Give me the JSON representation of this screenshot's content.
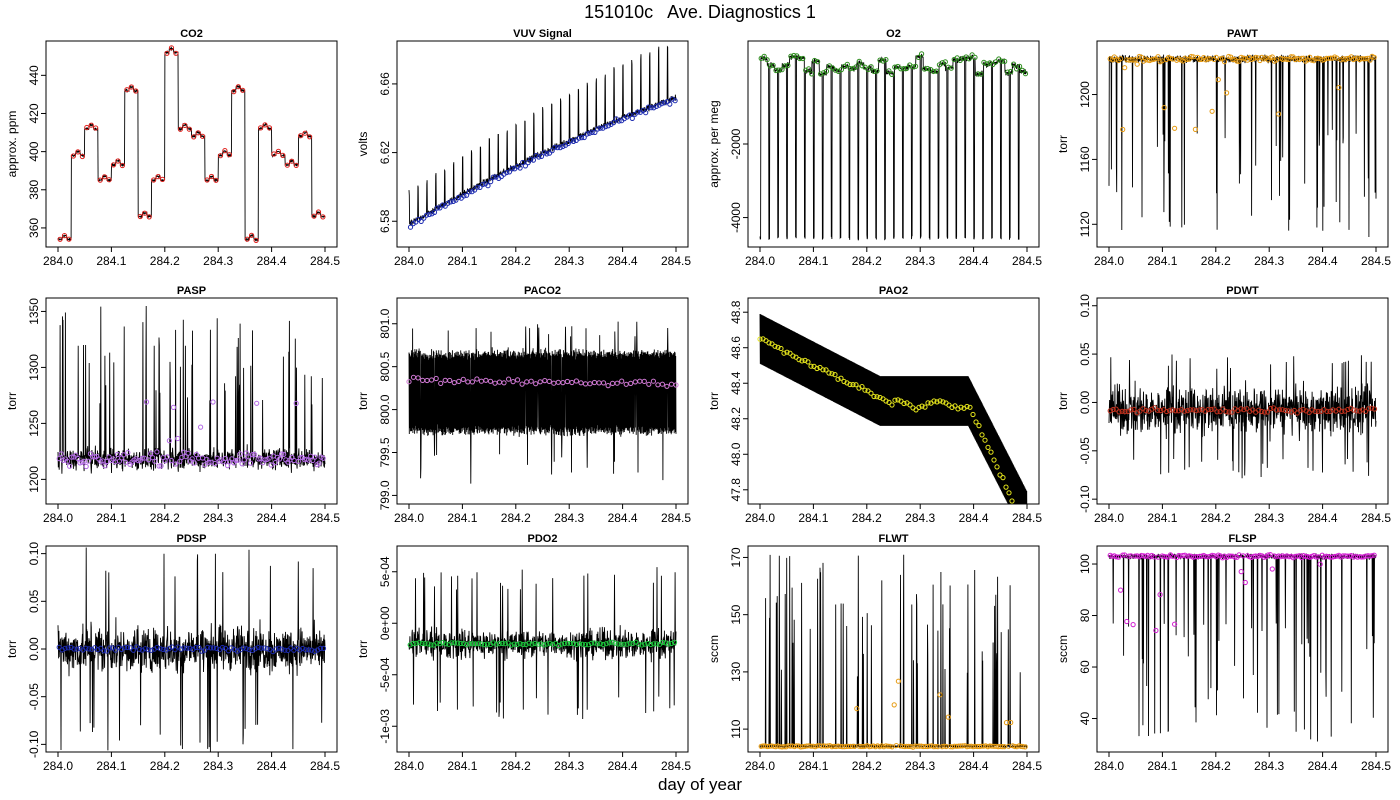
{
  "figure": {
    "title": "151010c   Ave. Diagnostics 1",
    "xlabel": "day of year"
  },
  "chart_data": [
    {
      "type": "line",
      "title": "CO2",
      "ylabel": "approx. ppm",
      "xlim": [
        284.0,
        284.5
      ],
      "ylim": [
        350,
        458
      ],
      "xticks": [
        284.0,
        284.1,
        284.2,
        284.3,
        284.4,
        284.5
      ],
      "xtick_labels": [
        "284.0",
        "284.1",
        "284.2",
        "284.3",
        "284.4",
        "284.5"
      ],
      "yticks": [
        360,
        380,
        400,
        420,
        440
      ],
      "ytick_labels": [
        "360",
        "380",
        "400",
        "420",
        "440"
      ],
      "style": "cycle",
      "points_color": "#e0201c",
      "levels": [
        354,
        398,
        412,
        385,
        393,
        432,
        366,
        385,
        452,
        412,
        408,
        385,
        398,
        432,
        354,
        412,
        398,
        393,
        408,
        366
      ],
      "series": [
        {
          "name": "raw",
          "color": "#000000"
        },
        {
          "name": "average",
          "color": "#e0201c"
        }
      ]
    },
    {
      "type": "line",
      "title": "VUV Signal",
      "ylabel": "volts",
      "xlim": [
        284.0,
        284.5
      ],
      "ylim": [
        6.565,
        6.685
      ],
      "xticks": [
        284.0,
        284.1,
        284.2,
        284.3,
        284.4,
        284.5
      ],
      "xtick_labels": [
        "284.0",
        "284.1",
        "284.2",
        "284.3",
        "284.4",
        "284.5"
      ],
      "yticks": [
        6.58,
        6.62,
        6.66
      ],
      "ytick_labels": [
        "6.58",
        "6.62",
        "6.66"
      ],
      "style": "ramp",
      "start": 6.578,
      "end": 6.652,
      "spike_height": 0.03,
      "points_color": "#1c2ab0",
      "series": [
        {
          "name": "raw",
          "color": "#000000"
        },
        {
          "name": "average",
          "color": "#1c2ab0"
        }
      ]
    },
    {
      "type": "line",
      "title": "O2",
      "ylabel": "approx. per meg",
      "xlim": [
        284.0,
        284.5
      ],
      "ylim": [
        -4800,
        800
      ],
      "xticks": [
        284.0,
        284.1,
        284.2,
        284.3,
        284.4,
        284.5
      ],
      "xtick_labels": [
        "284.0",
        "284.1",
        "284.2",
        "284.3",
        "284.4",
        "284.5"
      ],
      "yticks": [
        -4000,
        -2000
      ],
      "ytick_labels": [
        "-4000",
        "-2000"
      ],
      "style": "o2",
      "points_color": "#2c8c1c",
      "high": [
        -100,
        400
      ],
      "low": -4550,
      "series": [
        {
          "name": "raw",
          "color": "#000000"
        },
        {
          "name": "average",
          "color": "#2c8c1c"
        }
      ]
    },
    {
      "type": "line",
      "title": "PAWT",
      "ylabel": "torr",
      "xlim": [
        284.0,
        284.5
      ],
      "ylim": [
        1106,
        1233
      ],
      "xticks": [
        284.0,
        284.1,
        284.2,
        284.3,
        284.4,
        284.5
      ],
      "xtick_labels": [
        "284.0",
        "284.1",
        "284.2",
        "284.3",
        "284.4",
        "284.5"
      ],
      "yticks": [
        1120,
        1160,
        1200
      ],
      "ytick_labels": [
        "1120",
        "1160",
        "1200"
      ],
      "style": "dips",
      "base": 1222,
      "noise": 2,
      "dip_min": 1112,
      "points_color": "#e69a10",
      "series": [
        {
          "name": "raw",
          "color": "#000000"
        },
        {
          "name": "average",
          "color": "#e69a10"
        }
      ]
    },
    {
      "type": "line",
      "title": "PASP",
      "ylabel": "torr",
      "xlim": [
        284.0,
        284.5
      ],
      "ylim": [
        1178,
        1362
      ],
      "xticks": [
        284.0,
        284.1,
        284.2,
        284.3,
        284.4,
        284.5
      ],
      "xtick_labels": [
        "284.0",
        "284.1",
        "284.2",
        "284.3",
        "284.4",
        "284.5"
      ],
      "yticks": [
        1200,
        1250,
        1300,
        1350
      ],
      "ytick_labels": [
        "1200",
        "1250",
        "1300",
        "1350"
      ],
      "style": "spiky_up",
      "base": 1218,
      "noise": 8,
      "spike_max": 1355,
      "points_color": "#b46ae6",
      "series": [
        {
          "name": "raw",
          "color": "#000000"
        },
        {
          "name": "average",
          "color": "#b46ae6"
        }
      ]
    },
    {
      "type": "line",
      "title": "PACO2",
      "ylabel": "torr",
      "xlim": [
        284.0,
        284.5
      ],
      "ylim": [
        798.9,
        801.3
      ],
      "xticks": [
        284.0,
        284.1,
        284.2,
        284.3,
        284.4,
        284.5
      ],
      "xtick_labels": [
        "284.0",
        "284.1",
        "284.2",
        "284.3",
        "284.4",
        "284.5"
      ],
      "yticks": [
        799.0,
        799.5,
        800.0,
        800.5,
        801.0
      ],
      "ytick_labels": [
        "799.0",
        "799.5",
        "800.0",
        "800.5",
        "801.0"
      ],
      "style": "band",
      "center": 800.25,
      "band_low": 799.75,
      "band_high": 800.65,
      "tail_low": 799.1,
      "tail_high": 801.05,
      "points_color": "#d27ad6",
      "avg_start": 800.35,
      "avg_end": 800.3,
      "series": [
        {
          "name": "raw",
          "color": "#000000"
        },
        {
          "name": "average",
          "color": "#d27ad6"
        }
      ]
    },
    {
      "type": "line",
      "title": "PAO2",
      "ylabel": "torr",
      "xlim": [
        284.0,
        284.5
      ],
      "ylim": [
        47.72,
        48.88
      ],
      "xticks": [
        284.0,
        284.1,
        284.2,
        284.3,
        284.4,
        284.5
      ],
      "xtick_labels": [
        "284.0",
        "284.1",
        "284.2",
        "284.3",
        "284.4",
        "284.5"
      ],
      "yticks": [
        47.8,
        48.0,
        48.2,
        48.4,
        48.6,
        48.8
      ],
      "ytick_labels": [
        "47.8",
        "48.0",
        "48.2",
        "48.4",
        "48.6",
        "48.8"
      ],
      "style": "pao2",
      "points_color": "#e6e61c",
      "series": [
        {
          "name": "raw",
          "color": "#000000"
        },
        {
          "name": "average",
          "color": "#e6e61c"
        }
      ]
    },
    {
      "type": "line",
      "title": "PDWT",
      "ylabel": "torr",
      "xlim": [
        284.0,
        284.5
      ],
      "ylim": [
        -0.105,
        0.108
      ],
      "xticks": [
        284.0,
        284.1,
        284.2,
        284.3,
        284.4,
        284.5
      ],
      "xtick_labels": [
        "284.0",
        "284.1",
        "284.2",
        "284.3",
        "284.4",
        "284.5"
      ],
      "yticks": [
        -0.1,
        -0.05,
        0.0,
        0.05,
        0.1
      ],
      "ytick_labels": [
        "-0.10",
        "-0.05",
        "0.00",
        "0.05",
        "0.10"
      ],
      "style": "noise_band",
      "center": -0.008,
      "noise": 0.02,
      "spike_low": -0.08,
      "spike_high": 0.05,
      "points_color": "#c0301c",
      "series": [
        {
          "name": "raw",
          "color": "#000000"
        },
        {
          "name": "average",
          "color": "#c0301c"
        }
      ]
    },
    {
      "type": "line",
      "title": "PDSP",
      "ylabel": "torr",
      "xlim": [
        284.0,
        284.5
      ],
      "ylim": [
        -0.108,
        0.108
      ],
      "xticks": [
        284.0,
        284.1,
        284.2,
        284.3,
        284.4,
        284.5
      ],
      "xtick_labels": [
        "284.0",
        "284.1",
        "284.2",
        "284.3",
        "284.4",
        "284.5"
      ],
      "yticks": [
        -0.1,
        -0.05,
        0.0,
        0.05,
        0.1
      ],
      "ytick_labels": [
        "-0.10",
        "-0.05",
        "0.00",
        "0.05",
        "0.10"
      ],
      "style": "noise_band",
      "center": 0.0,
      "noise": 0.02,
      "spike_low": -0.108,
      "spike_high": 0.108,
      "points_color": "#1c2ab0",
      "series": [
        {
          "name": "raw",
          "color": "#000000"
        },
        {
          "name": "average",
          "color": "#1c2ab0"
        }
      ]
    },
    {
      "type": "line",
      "title": "PDO2",
      "ylabel": "torr",
      "xlim": [
        284.0,
        284.5
      ],
      "ylim": [
        -0.00125,
        0.00075
      ],
      "xticks": [
        284.0,
        284.1,
        284.2,
        284.3,
        284.4,
        284.5
      ],
      "xtick_labels": [
        "284.0",
        "284.1",
        "284.2",
        "284.3",
        "284.4",
        "284.5"
      ],
      "yticks": [
        -0.001,
        -0.0005,
        0.0,
        0.0005
      ],
      "ytick_labels": [
        "-1e-03",
        "-5e-04",
        "0e+00",
        "5e-04"
      ],
      "style": "noise_band",
      "center": -0.0002,
      "noise": 0.00012,
      "spike_low": -0.00093,
      "spike_high": 0.00055,
      "points_color": "#1cc83c",
      "series": [
        {
          "name": "raw",
          "color": "#000000"
        },
        {
          "name": "average",
          "color": "#1cc83c"
        }
      ]
    },
    {
      "type": "line",
      "title": "FLWT",
      "ylabel": "sccm",
      "xlim": [
        284.0,
        284.5
      ],
      "ylim": [
        102,
        174
      ],
      "xticks": [
        284.0,
        284.1,
        284.2,
        284.3,
        284.4,
        284.5
      ],
      "xtick_labels": [
        "284.0",
        "284.1",
        "284.2",
        "284.3",
        "284.4",
        "284.5"
      ],
      "yticks": [
        110,
        130,
        150,
        170
      ],
      "ytick_labels": [
        "110",
        "130",
        "150",
        "170"
      ],
      "style": "spiky_up",
      "base": 104,
      "noise": 0.3,
      "spike_max": 171,
      "points_color": "#e69a10",
      "series": [
        {
          "name": "raw",
          "color": "#000000"
        },
        {
          "name": "average",
          "color": "#e69a10"
        }
      ]
    },
    {
      "type": "line",
      "title": "FLSP",
      "ylabel": "sccm",
      "xlim": [
        284.0,
        284.5
      ],
      "ylim": [
        27,
        107
      ],
      "xticks": [
        284.0,
        284.1,
        284.2,
        284.3,
        284.4,
        284.5
      ],
      "xtick_labels": [
        "284.0",
        "284.1",
        "284.2",
        "284.3",
        "284.4",
        "284.5"
      ],
      "yticks": [
        40,
        60,
        80,
        100
      ],
      "ytick_labels": [
        "40",
        "60",
        "80",
        "100"
      ],
      "style": "dips",
      "base": 103,
      "noise": 0.8,
      "dip_min": 30,
      "points_color": "#d21cd2",
      "series": [
        {
          "name": "raw",
          "color": "#000000"
        },
        {
          "name": "average",
          "color": "#d21cd2"
        }
      ]
    }
  ]
}
